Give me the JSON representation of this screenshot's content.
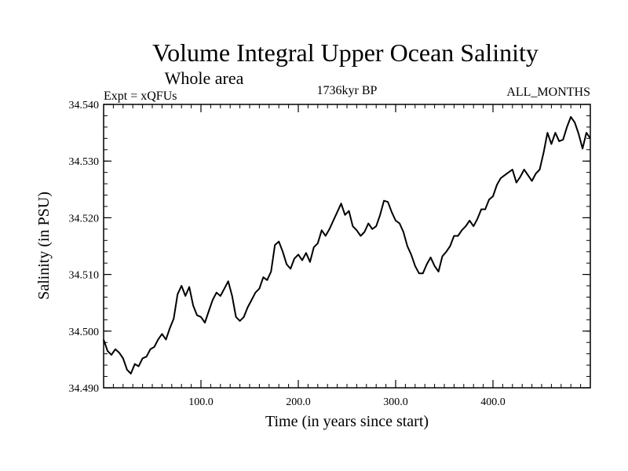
{
  "chart_data": {
    "type": "line",
    "title": "Volume Integral Upper Ocean Salinity",
    "subtitle": "Whole area",
    "expt_label": "Expt = xQFUs",
    "period_label": "1736kyr BP",
    "months_label": "ALL_MONTHS",
    "xlabel": "Time (in years since start)",
    "ylabel": "Salinity (in PSU)",
    "xlim": [
      0,
      500
    ],
    "ylim": [
      34.49,
      34.54
    ],
    "x_ticks": [
      100,
      200,
      300,
      400
    ],
    "x_tick_labels": [
      "100.0",
      "200.0",
      "300.0",
      "400.0"
    ],
    "y_ticks": [
      34.49,
      34.5,
      34.51,
      34.52,
      34.53,
      34.54
    ],
    "y_tick_labels": [
      "34.490",
      "34.500",
      "34.510",
      "34.520",
      "34.530",
      "34.540"
    ],
    "grid": false,
    "series": [
      {
        "name": "Salinity",
        "x": [
          0,
          4,
          8,
          12,
          16,
          20,
          24,
          28,
          32,
          36,
          40,
          44,
          48,
          52,
          56,
          60,
          64,
          68,
          72,
          76,
          80,
          84,
          88,
          92,
          96,
          100,
          104,
          108,
          112,
          116,
          120,
          124,
          128,
          132,
          136,
          140,
          144,
          148,
          152,
          156,
          160,
          164,
          168,
          172,
          176,
          180,
          184,
          188,
          192,
          196,
          200,
          204,
          208,
          212,
          216,
          220,
          224,
          228,
          232,
          236,
          240,
          244,
          248,
          252,
          256,
          260,
          264,
          268,
          272,
          276,
          280,
          284,
          288,
          292,
          296,
          300,
          304,
          308,
          312,
          316,
          320,
          324,
          328,
          332,
          336,
          340,
          344,
          348,
          352,
          356,
          360,
          364,
          368,
          372,
          376,
          380,
          384,
          388,
          392,
          396,
          400,
          404,
          408,
          412,
          416,
          420,
          424,
          428,
          432,
          436,
          440,
          444,
          448,
          452,
          456,
          460,
          464,
          468,
          472,
          476,
          480,
          484,
          488,
          492,
          496,
          500
        ],
        "values": [
          34.4985,
          34.4965,
          34.4958,
          34.4968,
          34.4962,
          34.4952,
          34.4932,
          34.4925,
          34.4942,
          34.4938,
          34.4952,
          34.4955,
          34.4968,
          34.4972,
          34.4985,
          34.4995,
          34.4985,
          34.5005,
          34.5022,
          34.5065,
          34.508,
          34.5062,
          34.5078,
          34.5045,
          34.5028,
          34.5025,
          34.5015,
          34.5035,
          34.5055,
          34.5068,
          34.5062,
          34.5075,
          34.5088,
          34.5062,
          34.5025,
          34.5018,
          34.5025,
          34.5042,
          34.5055,
          34.5068,
          34.5075,
          34.5095,
          34.509,
          34.5105,
          34.5152,
          34.5158,
          34.514,
          34.5118,
          34.511,
          34.5128,
          34.5135,
          34.5125,
          34.5138,
          34.5122,
          34.5148,
          34.5155,
          34.5178,
          34.5168,
          34.518,
          34.5195,
          34.521,
          34.5225,
          34.5205,
          34.5212,
          34.5185,
          34.5178,
          34.5168,
          34.5175,
          34.519,
          34.518,
          34.5185,
          34.5205,
          34.523,
          34.5228,
          34.521,
          34.5195,
          34.519,
          34.5175,
          34.515,
          34.5135,
          34.5115,
          34.5102,
          34.5102,
          34.5118,
          34.513,
          34.5115,
          34.5105,
          34.5132,
          34.514,
          34.515,
          34.5168,
          34.5168,
          34.5178,
          34.5185,
          34.5195,
          34.5185,
          34.5198,
          34.5215,
          34.5215,
          34.5232,
          34.5238,
          34.5258,
          34.527,
          34.5275,
          34.528,
          34.5285,
          34.5262,
          34.5272,
          34.5285,
          34.5275,
          34.5265,
          34.5278,
          34.5285,
          34.5315,
          34.535,
          34.533,
          34.535,
          34.5335,
          34.5338,
          34.536,
          34.5378,
          34.5368,
          34.5348,
          34.5322,
          34.535,
          34.534
        ]
      }
    ]
  }
}
